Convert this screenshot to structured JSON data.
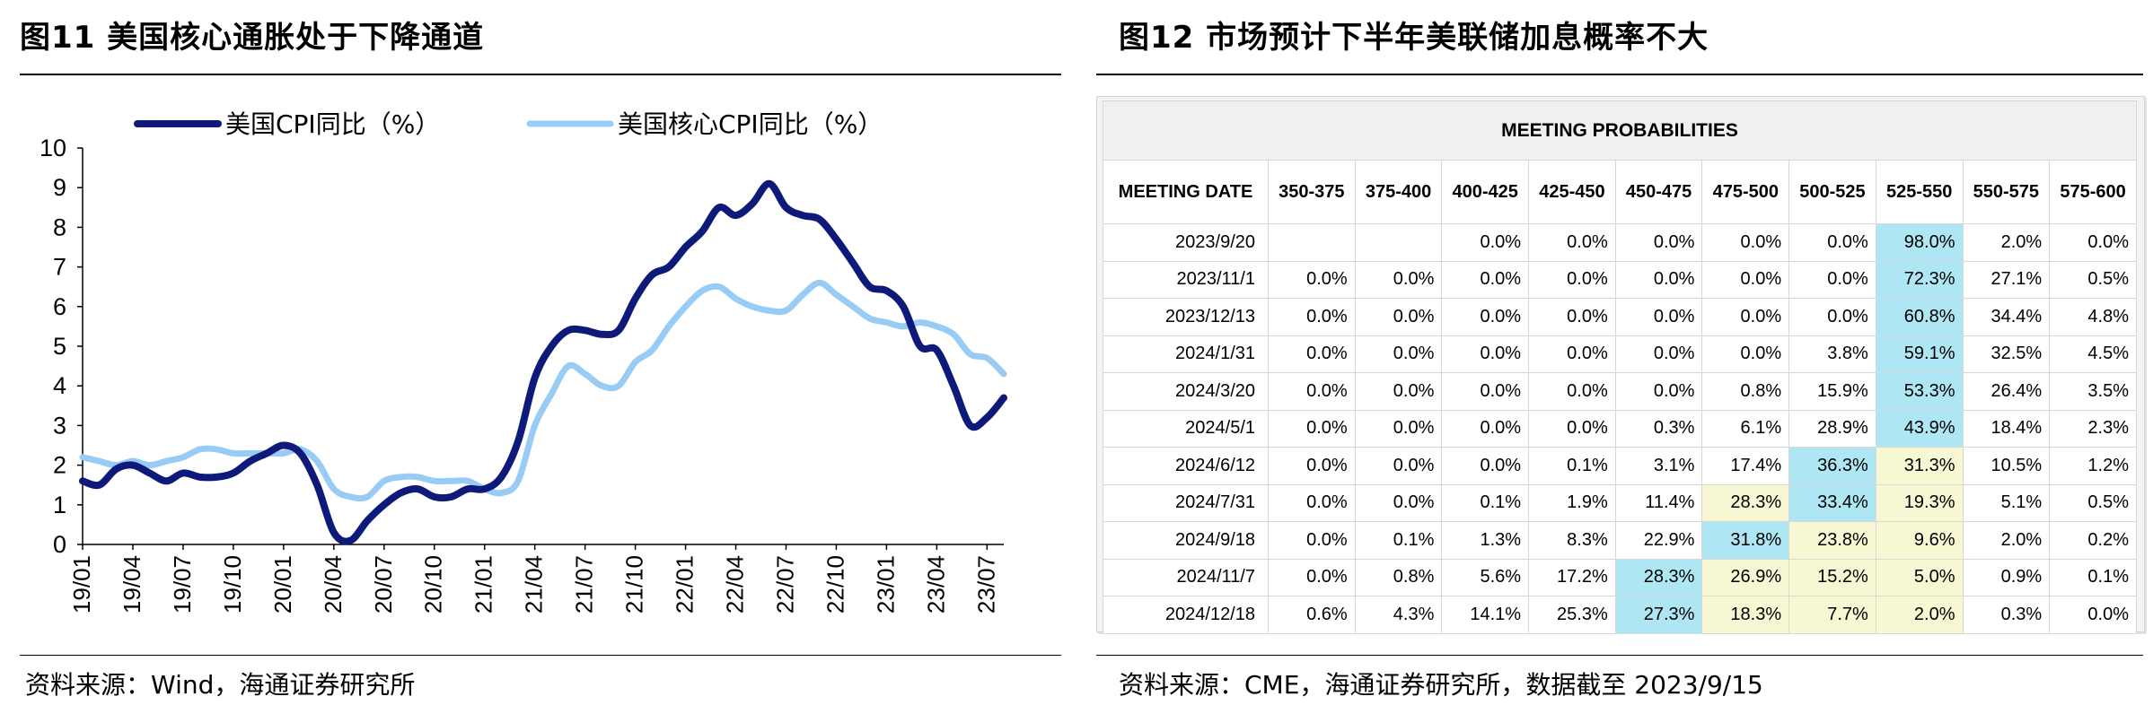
{
  "left": {
    "title": "图11 美国核心通胀处于下降通道",
    "source": "资料来源：Wind，海通证券研究所"
  },
  "right": {
    "title": "图12 市场预计下半年美联储加息概率不大",
    "source": "资料来源：CME，海通证券研究所，数据截至 2023/9/15"
  },
  "chart_data": [
    {
      "type": "line",
      "ylim": [
        0,
        10
      ],
      "yticks": [
        "0",
        "1",
        "2",
        "3",
        "4",
        "5",
        "6",
        "7",
        "8",
        "9",
        "10"
      ],
      "xtick_labels": [
        "19/01",
        "19/04",
        "19/07",
        "19/10",
        "20/01",
        "20/04",
        "20/07",
        "20/10",
        "21/01",
        "21/04",
        "21/07",
        "21/10",
        "22/01",
        "22/04",
        "22/07",
        "22/10",
        "23/01",
        "23/04",
        "23/07"
      ],
      "legend_placement": "top",
      "grid": false,
      "series": [
        {
          "name": "美国CPI同比（%）",
          "color": "#0d1a7a",
          "values": [
            1.6,
            1.5,
            1.9,
            2.0,
            1.8,
            1.6,
            1.8,
            1.7,
            1.7,
            1.8,
            2.1,
            2.3,
            2.5,
            2.3,
            1.5,
            0.3,
            0.1,
            0.6,
            1.0,
            1.3,
            1.4,
            1.2,
            1.2,
            1.4,
            1.4,
            1.7,
            2.6,
            4.2,
            5.0,
            5.4,
            5.4,
            5.3,
            5.4,
            6.2,
            6.8,
            7.0,
            7.5,
            7.9,
            8.5,
            8.3,
            8.6,
            9.1,
            8.5,
            8.3,
            8.2,
            7.7,
            7.1,
            6.5,
            6.4,
            6.0,
            5.0,
            4.9,
            4.0,
            3.0,
            3.2,
            3.7
          ]
        },
        {
          "name": "美国核心CPI同比（%）",
          "color": "#99ccf4",
          "values": [
            2.2,
            2.1,
            2.0,
            2.1,
            2.0,
            2.1,
            2.2,
            2.4,
            2.4,
            2.3,
            2.3,
            2.3,
            2.3,
            2.4,
            2.1,
            1.4,
            1.2,
            1.2,
            1.6,
            1.7,
            1.7,
            1.6,
            1.6,
            1.6,
            1.4,
            1.3,
            1.6,
            3.0,
            3.8,
            4.5,
            4.3,
            4.0,
            4.0,
            4.6,
            4.9,
            5.5,
            6.0,
            6.4,
            6.5,
            6.2,
            6.0,
            5.9,
            5.9,
            6.3,
            6.6,
            6.3,
            6.0,
            5.7,
            5.6,
            5.5,
            5.6,
            5.5,
            5.3,
            4.8,
            4.7,
            4.3
          ]
        }
      ]
    },
    {
      "type": "table",
      "title": "MEETING PROBABILITIES",
      "columns": [
        "MEETING DATE",
        "350-375",
        "375-400",
        "400-425",
        "425-450",
        "450-475",
        "475-500",
        "500-525",
        "525-550",
        "550-575",
        "575-600"
      ],
      "rows": [
        {
          "cells": [
            "2023/9/20",
            "",
            "",
            "0.0%",
            "0.0%",
            "0.0%",
            "0.0%",
            "0.0%",
            "98.0%",
            "2.0%",
            "0.0%"
          ],
          "shade": [
            "",
            "",
            "",
            "",
            "",
            "",
            "",
            "",
            "b",
            "",
            ""
          ]
        },
        {
          "cells": [
            "2023/11/1",
            "0.0%",
            "0.0%",
            "0.0%",
            "0.0%",
            "0.0%",
            "0.0%",
            "0.0%",
            "72.3%",
            "27.1%",
            "0.5%"
          ],
          "shade": [
            "",
            "",
            "",
            "",
            "",
            "",
            "",
            "",
            "b",
            "",
            ""
          ]
        },
        {
          "cells": [
            "2023/12/13",
            "0.0%",
            "0.0%",
            "0.0%",
            "0.0%",
            "0.0%",
            "0.0%",
            "0.0%",
            "60.8%",
            "34.4%",
            "4.8%"
          ],
          "shade": [
            "",
            "",
            "",
            "",
            "",
            "",
            "",
            "",
            "b",
            "",
            ""
          ]
        },
        {
          "cells": [
            "2024/1/31",
            "0.0%",
            "0.0%",
            "0.0%",
            "0.0%",
            "0.0%",
            "0.0%",
            "3.8%",
            "59.1%",
            "32.5%",
            "4.5%"
          ],
          "shade": [
            "",
            "",
            "",
            "",
            "",
            "",
            "",
            "",
            "b",
            "",
            ""
          ]
        },
        {
          "cells": [
            "2024/3/20",
            "0.0%",
            "0.0%",
            "0.0%",
            "0.0%",
            "0.0%",
            "0.8%",
            "15.9%",
            "53.3%",
            "26.4%",
            "3.5%"
          ],
          "shade": [
            "",
            "",
            "",
            "",
            "",
            "",
            "",
            "",
            "b",
            "",
            ""
          ]
        },
        {
          "cells": [
            "2024/5/1",
            "0.0%",
            "0.0%",
            "0.0%",
            "0.0%",
            "0.3%",
            "6.1%",
            "28.9%",
            "43.9%",
            "18.4%",
            "2.3%"
          ],
          "shade": [
            "",
            "",
            "",
            "",
            "",
            "",
            "",
            "",
            "b",
            "",
            ""
          ]
        },
        {
          "cells": [
            "2024/6/12",
            "0.0%",
            "0.0%",
            "0.0%",
            "0.1%",
            "3.1%",
            "17.4%",
            "36.3%",
            "31.3%",
            "10.5%",
            "1.2%"
          ],
          "shade": [
            "",
            "",
            "",
            "",
            "",
            "",
            "",
            "b",
            "y",
            "",
            ""
          ]
        },
        {
          "cells": [
            "2024/7/31",
            "0.0%",
            "0.0%",
            "0.1%",
            "1.9%",
            "11.4%",
            "28.3%",
            "33.4%",
            "19.3%",
            "5.1%",
            "0.5%"
          ],
          "shade": [
            "",
            "",
            "",
            "",
            "",
            "",
            "y",
            "b",
            "y",
            "",
            ""
          ]
        },
        {
          "cells": [
            "2024/9/18",
            "0.0%",
            "0.1%",
            "1.3%",
            "8.3%",
            "22.9%",
            "31.8%",
            "23.8%",
            "9.6%",
            "2.0%",
            "0.2%"
          ],
          "shade": [
            "",
            "",
            "",
            "",
            "",
            "",
            "b",
            "y",
            "y",
            "",
            ""
          ]
        },
        {
          "cells": [
            "2024/11/7",
            "0.0%",
            "0.8%",
            "5.6%",
            "17.2%",
            "28.3%",
            "26.9%",
            "15.2%",
            "5.0%",
            "0.9%",
            "0.1%"
          ],
          "shade": [
            "",
            "",
            "",
            "",
            "",
            "b",
            "y",
            "y",
            "y",
            "",
            ""
          ]
        },
        {
          "cells": [
            "2024/12/18",
            "0.6%",
            "4.3%",
            "14.1%",
            "25.3%",
            "27.3%",
            "18.3%",
            "7.7%",
            "2.0%",
            "0.3%",
            "0.0%"
          ],
          "shade": [
            "",
            "",
            "",
            "",
            "",
            "b",
            "y",
            "y",
            "y",
            "",
            ""
          ]
        }
      ]
    }
  ]
}
